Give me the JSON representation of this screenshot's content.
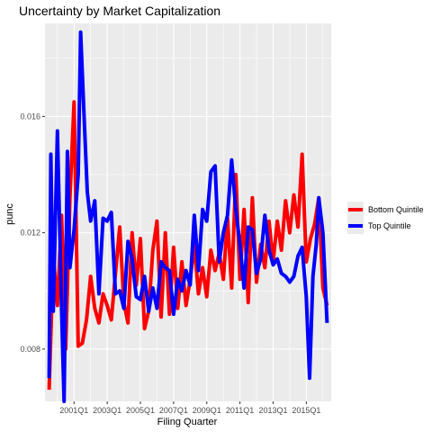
{
  "title": "Uncertainty by Market Capitalization",
  "colors": {
    "panel": "#ebebeb",
    "grid_major": "#ffffff",
    "bottom": "#ff0000",
    "top": "#0000ff"
  },
  "chart_data": {
    "type": "line",
    "title": "Uncertainty by Market Capitalization",
    "xlabel": "Filing Quarter",
    "ylabel": "punc",
    "x_ticks": [
      "2001Q1",
      "2003Q1",
      "2005Q1",
      "2007Q1",
      "2009Q1",
      "2011Q1",
      "2013Q1",
      "2015Q1"
    ],
    "y_ticks": [
      "0.008",
      "0.012",
      "0.016"
    ],
    "xlim": [
      1999.25,
      2016.5
    ],
    "ylim": [
      0.0062,
      0.0192
    ],
    "grid": true,
    "legend_position": "right",
    "series": [
      {
        "name": "Bottom Quintile",
        "color": "#ff0000",
        "points": [
          [
            1999.5,
            0.0066
          ],
          [
            1999.75,
            0.0112
          ],
          [
            2000.0,
            0.0095
          ],
          [
            2000.25,
            0.0126
          ],
          [
            2000.5,
            0.008
          ],
          [
            2000.75,
            0.0132
          ],
          [
            2001.0,
            0.0165
          ],
          [
            2001.25,
            0.0081
          ],
          [
            2001.5,
            0.0082
          ],
          [
            2001.75,
            0.009
          ],
          [
            2002.0,
            0.0105
          ],
          [
            2002.25,
            0.0094
          ],
          [
            2002.5,
            0.0089
          ],
          [
            2002.75,
            0.0099
          ],
          [
            2003.0,
            0.0095
          ],
          [
            2003.25,
            0.009
          ],
          [
            2003.5,
            0.0106
          ],
          [
            2003.75,
            0.0122
          ],
          [
            2004.0,
            0.0096
          ],
          [
            2004.25,
            0.0089
          ],
          [
            2004.5,
            0.012
          ],
          [
            2004.75,
            0.0102
          ],
          [
            2005.0,
            0.0118
          ],
          [
            2005.25,
            0.0087
          ],
          [
            2005.5,
            0.0093
          ],
          [
            2005.75,
            0.0114
          ],
          [
            2006.0,
            0.0124
          ],
          [
            2006.25,
            0.0091
          ],
          [
            2006.5,
            0.012
          ],
          [
            2006.75,
            0.0092
          ],
          [
            2007.0,
            0.0115
          ],
          [
            2007.25,
            0.0094
          ],
          [
            2007.5,
            0.011
          ],
          [
            2007.75,
            0.0095
          ],
          [
            2008.0,
            0.0104
          ],
          [
            2008.25,
            0.0116
          ],
          [
            2008.5,
            0.0099
          ],
          [
            2008.75,
            0.0108
          ],
          [
            2009.0,
            0.0098
          ],
          [
            2009.25,
            0.0114
          ],
          [
            2009.5,
            0.0107
          ],
          [
            2009.75,
            0.0113
          ],
          [
            2010.0,
            0.0104
          ],
          [
            2010.25,
            0.0125
          ],
          [
            2010.5,
            0.0101
          ],
          [
            2010.75,
            0.014
          ],
          [
            2011.0,
            0.0104
          ],
          [
            2011.25,
            0.0128
          ],
          [
            2011.5,
            0.0096
          ],
          [
            2011.75,
            0.0132
          ],
          [
            2012.0,
            0.0103
          ],
          [
            2012.25,
            0.0116
          ],
          [
            2012.5,
            0.0108
          ],
          [
            2012.75,
            0.0124
          ],
          [
            2013.0,
            0.011
          ],
          [
            2013.25,
            0.0124
          ],
          [
            2013.5,
            0.0114
          ],
          [
            2013.75,
            0.0131
          ],
          [
            2014.0,
            0.012
          ],
          [
            2014.25,
            0.0133
          ],
          [
            2014.5,
            0.0122
          ],
          [
            2014.75,
            0.0147
          ],
          [
            2015.0,
            0.011
          ],
          [
            2015.25,
            0.0118
          ],
          [
            2015.5,
            0.0123
          ],
          [
            2015.75,
            0.0132
          ],
          [
            2016.0,
            0.0101
          ],
          [
            2016.25,
            0.0095
          ]
        ]
      },
      {
        "name": "Top Quintile",
        "color": "#0000ff",
        "points": [
          [
            1999.5,
            0.007
          ],
          [
            1999.6,
            0.0147
          ],
          [
            1999.75,
            0.0093
          ],
          [
            2000.0,
            0.0155
          ],
          [
            2000.25,
            0.0094
          ],
          [
            2000.4,
            0.0062
          ],
          [
            2000.6,
            0.0148
          ],
          [
            2000.75,
            0.0108
          ],
          [
            2001.0,
            0.0121
          ],
          [
            2001.25,
            0.014
          ],
          [
            2001.4,
            0.0189
          ],
          [
            2001.6,
            0.0161
          ],
          [
            2001.8,
            0.0134
          ],
          [
            2002.0,
            0.0124
          ],
          [
            2002.25,
            0.0131
          ],
          [
            2002.5,
            0.0099
          ],
          [
            2002.75,
            0.0125
          ],
          [
            2003.0,
            0.0124
          ],
          [
            2003.25,
            0.0127
          ],
          [
            2003.5,
            0.0099
          ],
          [
            2003.75,
            0.01
          ],
          [
            2004.0,
            0.0094
          ],
          [
            2004.25,
            0.0117
          ],
          [
            2004.5,
            0.0111
          ],
          [
            2004.75,
            0.0098
          ],
          [
            2005.0,
            0.0097
          ],
          [
            2005.25,
            0.0105
          ],
          [
            2005.5,
            0.0093
          ],
          [
            2005.75,
            0.0101
          ],
          [
            2006.0,
            0.0094
          ],
          [
            2006.25,
            0.011
          ],
          [
            2006.5,
            0.0108
          ],
          [
            2006.75,
            0.0107
          ],
          [
            2007.0,
            0.0092
          ],
          [
            2007.25,
            0.0104
          ],
          [
            2007.5,
            0.01
          ],
          [
            2007.75,
            0.0107
          ],
          [
            2008.0,
            0.0102
          ],
          [
            2008.25,
            0.0126
          ],
          [
            2008.5,
            0.0107
          ],
          [
            2008.75,
            0.0128
          ],
          [
            2009.0,
            0.0124
          ],
          [
            2009.25,
            0.0141
          ],
          [
            2009.5,
            0.0143
          ],
          [
            2009.75,
            0.011
          ],
          [
            2010.0,
            0.012
          ],
          [
            2010.25,
            0.0126
          ],
          [
            2010.5,
            0.0145
          ],
          [
            2010.75,
            0.0128
          ],
          [
            2011.0,
            0.0116
          ],
          [
            2011.25,
            0.0101
          ],
          [
            2011.5,
            0.0122
          ],
          [
            2011.75,
            0.0121
          ],
          [
            2012.0,
            0.0106
          ],
          [
            2012.25,
            0.0111
          ],
          [
            2012.5,
            0.0126
          ],
          [
            2012.75,
            0.0114
          ],
          [
            2013.0,
            0.0109
          ],
          [
            2013.25,
            0.0111
          ],
          [
            2013.5,
            0.0106
          ],
          [
            2013.75,
            0.0105
          ],
          [
            2014.0,
            0.0103
          ],
          [
            2014.25,
            0.0105
          ],
          [
            2014.5,
            0.0112
          ],
          [
            2014.75,
            0.0115
          ],
          [
            2015.0,
            0.0098
          ],
          [
            2015.2,
            0.007
          ],
          [
            2015.4,
            0.0105
          ],
          [
            2015.6,
            0.0116
          ],
          [
            2015.75,
            0.0132
          ],
          [
            2016.0,
            0.012
          ],
          [
            2016.25,
            0.0089
          ]
        ]
      }
    ]
  }
}
